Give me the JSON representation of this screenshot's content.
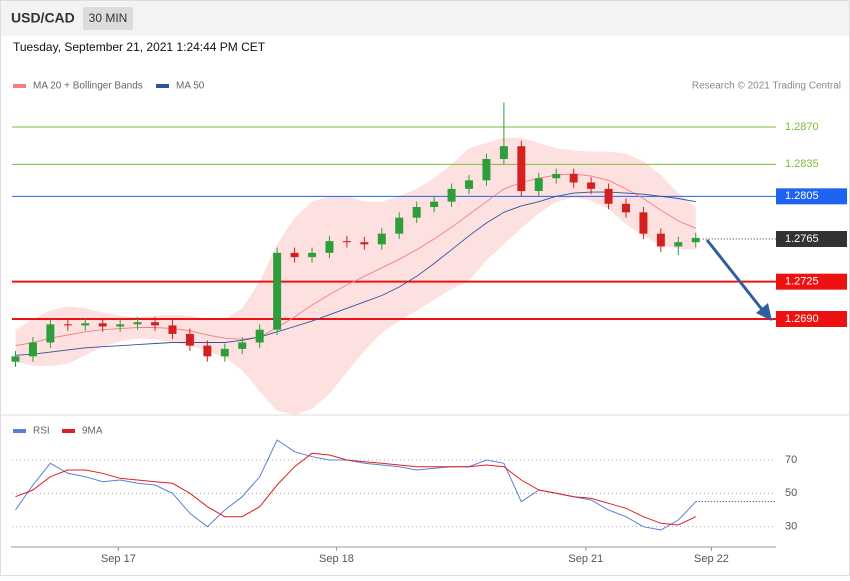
{
  "header": {
    "symbol": "USD/CAD",
    "timeframe": "30 MIN",
    "timestamp": "Tuesday, September 21, 2021 1:24:44 PM CET"
  },
  "chart_data": [
    {
      "type": "candlestick",
      "credit": "Research © 2021 Trading Central",
      "xlim": [
        -0.2,
        43.6
      ],
      "ylim": [
        1.26,
        1.29
      ],
      "up_color": "#2e9e3a",
      "down_color": "#d42020",
      "open": [
        1.265,
        1.2655,
        1.2668,
        1.2685,
        1.2684,
        1.2686,
        1.2683,
        1.2685,
        1.2687,
        1.2684,
        1.2676,
        1.2665,
        1.2655,
        1.2662,
        1.2668,
        1.268,
        1.2752,
        1.2748,
        1.2752,
        1.2763,
        1.2762,
        1.276,
        1.277,
        1.2785,
        1.2795,
        1.28,
        1.2812,
        1.282,
        1.284,
        1.2852,
        1.281,
        1.2822,
        1.2826,
        1.2818,
        1.2812,
        1.2798,
        1.279,
        1.277,
        1.2758,
        1.2762
      ],
      "high": [
        1.266,
        1.2673,
        1.269,
        1.269,
        1.2691,
        1.2691,
        1.269,
        1.2692,
        1.2692,
        1.2689,
        1.2681,
        1.267,
        1.2667,
        1.2673,
        1.2685,
        1.2757,
        1.2757,
        1.2757,
        1.2768,
        1.2768,
        1.2767,
        1.2775,
        1.279,
        1.28,
        1.2805,
        1.2817,
        1.2825,
        1.2845,
        1.2893,
        1.2857,
        1.2827,
        1.2831,
        1.2831,
        1.2823,
        1.2817,
        1.2803,
        1.2795,
        1.2775,
        1.2767,
        1.2771
      ],
      "low": [
        1.2645,
        1.265,
        1.2663,
        1.2679,
        1.2679,
        1.2678,
        1.2678,
        1.268,
        1.2679,
        1.2671,
        1.266,
        1.265,
        1.265,
        1.2657,
        1.2663,
        1.2675,
        1.2743,
        1.2743,
        1.2747,
        1.2757,
        1.2755,
        1.2755,
        1.2765,
        1.278,
        1.279,
        1.2795,
        1.2807,
        1.2815,
        1.2835,
        1.2805,
        1.2805,
        1.2817,
        1.2813,
        1.2807,
        1.2793,
        1.2785,
        1.2765,
        1.2753,
        1.275,
        1.2757
      ],
      "close": [
        1.2655,
        1.2668,
        1.2685,
        1.2684,
        1.2686,
        1.2683,
        1.2685,
        1.2687,
        1.2684,
        1.2676,
        1.2665,
        1.2655,
        1.2662,
        1.2668,
        1.268,
        1.2752,
        1.2748,
        1.2752,
        1.2763,
        1.2762,
        1.276,
        1.277,
        1.2785,
        1.2795,
        1.28,
        1.2812,
        1.282,
        1.284,
        1.2852,
        1.281,
        1.2822,
        1.2826,
        1.2818,
        1.2812,
        1.2798,
        1.279,
        1.277,
        1.2758,
        1.2762,
        1.2766
      ],
      "series": [
        {
          "name": "MA 20 + Bollinger Bands",
          "color": "#f08080",
          "band_color": "#fde0e0",
          "values": [
            1.2665,
            1.2668,
            1.2672,
            1.2675,
            1.2678,
            1.268,
            1.2681,
            1.2682,
            1.2682,
            1.2681,
            1.2679,
            1.2675,
            1.2672,
            1.2671,
            1.2673,
            1.2682,
            1.2692,
            1.2703,
            1.2713,
            1.2722,
            1.273,
            1.2738,
            1.2746,
            1.2755,
            1.2765,
            1.2776,
            1.2788,
            1.28,
            1.2812,
            1.2818,
            1.2822,
            1.2825,
            1.2826,
            1.2824,
            1.282,
            1.2812,
            1.2803,
            1.2792,
            1.2782,
            1.2775
          ],
          "upper": [
            1.268,
            1.269,
            1.2698,
            1.2702,
            1.27,
            1.2696,
            1.2693,
            1.2692,
            1.2693,
            1.2694,
            1.2693,
            1.269,
            1.269,
            1.27,
            1.2725,
            1.276,
            1.2785,
            1.28,
            1.2805,
            1.2805,
            1.28,
            1.28,
            1.2805,
            1.2812,
            1.2822,
            1.2835,
            1.285,
            1.2855,
            1.286,
            1.286,
            1.2855,
            1.285,
            1.2848,
            1.2847,
            1.2847,
            1.2845,
            1.2838,
            1.2825,
            1.2808,
            1.2795
          ],
          "lower": [
            1.265,
            1.2646,
            1.2646,
            1.2648,
            1.2656,
            1.2664,
            1.2669,
            1.2672,
            1.2671,
            1.2668,
            1.2665,
            1.266,
            1.2654,
            1.2642,
            1.2622,
            1.2604,
            1.26,
            1.2606,
            1.262,
            1.264,
            1.266,
            1.2677,
            1.2688,
            1.2698,
            1.2708,
            1.2718,
            1.2726,
            1.2745,
            1.276,
            1.2775,
            1.2789,
            1.28,
            1.2804,
            1.2801,
            1.2793,
            1.2779,
            1.2768,
            1.2759,
            1.2756,
            1.2755
          ]
        },
        {
          "name": "MA 50",
          "color": "#2f5597",
          "values": [
            1.2656,
            1.2657,
            1.2659,
            1.2661,
            1.2663,
            1.2664,
            1.2665,
            1.2666,
            1.2667,
            1.2668,
            1.2668,
            1.2668,
            1.2668,
            1.267,
            1.2673,
            1.2678,
            1.2683,
            1.2688,
            1.2694,
            1.27,
            1.2706,
            1.2712,
            1.272,
            1.273,
            1.2742,
            1.2755,
            1.2768,
            1.278,
            1.279,
            1.2796,
            1.28,
            1.2805,
            1.2808,
            1.2809,
            1.2809,
            1.2808,
            1.2807,
            1.2805,
            1.2803,
            1.28
          ]
        }
      ],
      "levels": [
        {
          "value": 1.287,
          "label": "1.2870",
          "color": "#7cbb3a",
          "style": "solid",
          "badge": false
        },
        {
          "value": 1.2835,
          "label": "1.2835",
          "color": "#7cbb3a",
          "style": "solid",
          "badge": false
        },
        {
          "value": 1.2805,
          "label": "1.2805",
          "color": "#1e64f0",
          "style": "solid",
          "badge": true
        },
        {
          "value": 1.2765,
          "label": "1.2765",
          "color": "#333333",
          "style": "dotted",
          "badge": true
        },
        {
          "value": 1.2725,
          "label": "1.2725",
          "color": "#ee1111",
          "style": "solid",
          "badge": true
        },
        {
          "value": 1.269,
          "label": "1.2690",
          "color": "#ee1111",
          "style": "solid",
          "badge": true
        }
      ]
    },
    {
      "type": "line",
      "xlim": [
        -0.2,
        43.6
      ],
      "ylim": [
        19,
        94
      ],
      "xticks": [
        {
          "value": 5.9,
          "label": "Sep 17"
        },
        {
          "value": 18.4,
          "label": "Sep 18"
        },
        {
          "value": 32.7,
          "label": "Sep 21"
        },
        {
          "value": 39.9,
          "label": "Sep 22"
        }
      ],
      "yticks": [
        30,
        50,
        70
      ],
      "series": [
        {
          "name": "RSI",
          "color": "#5b7fd6",
          "values": [
            40,
            55,
            68,
            62,
            60,
            57,
            58,
            56,
            55,
            50,
            38,
            30,
            40,
            48,
            60,
            82,
            75,
            72,
            70,
            70,
            68,
            67,
            66,
            64,
            65,
            66,
            66,
            70,
            68,
            45,
            52,
            50,
            48,
            46,
            40,
            36,
            30,
            28,
            34,
            45
          ]
        },
        {
          "name": "9MA",
          "color": "#e02020",
          "values": [
            48,
            52,
            60,
            64,
            64,
            62,
            59,
            58,
            57,
            56,
            50,
            42,
            36,
            36,
            42,
            55,
            66,
            74,
            73,
            70,
            69,
            68,
            67,
            66,
            66,
            66,
            66,
            67,
            66,
            58,
            52,
            50,
            48,
            47,
            44,
            41,
            36,
            32,
            31,
            36
          ]
        }
      ]
    }
  ]
}
